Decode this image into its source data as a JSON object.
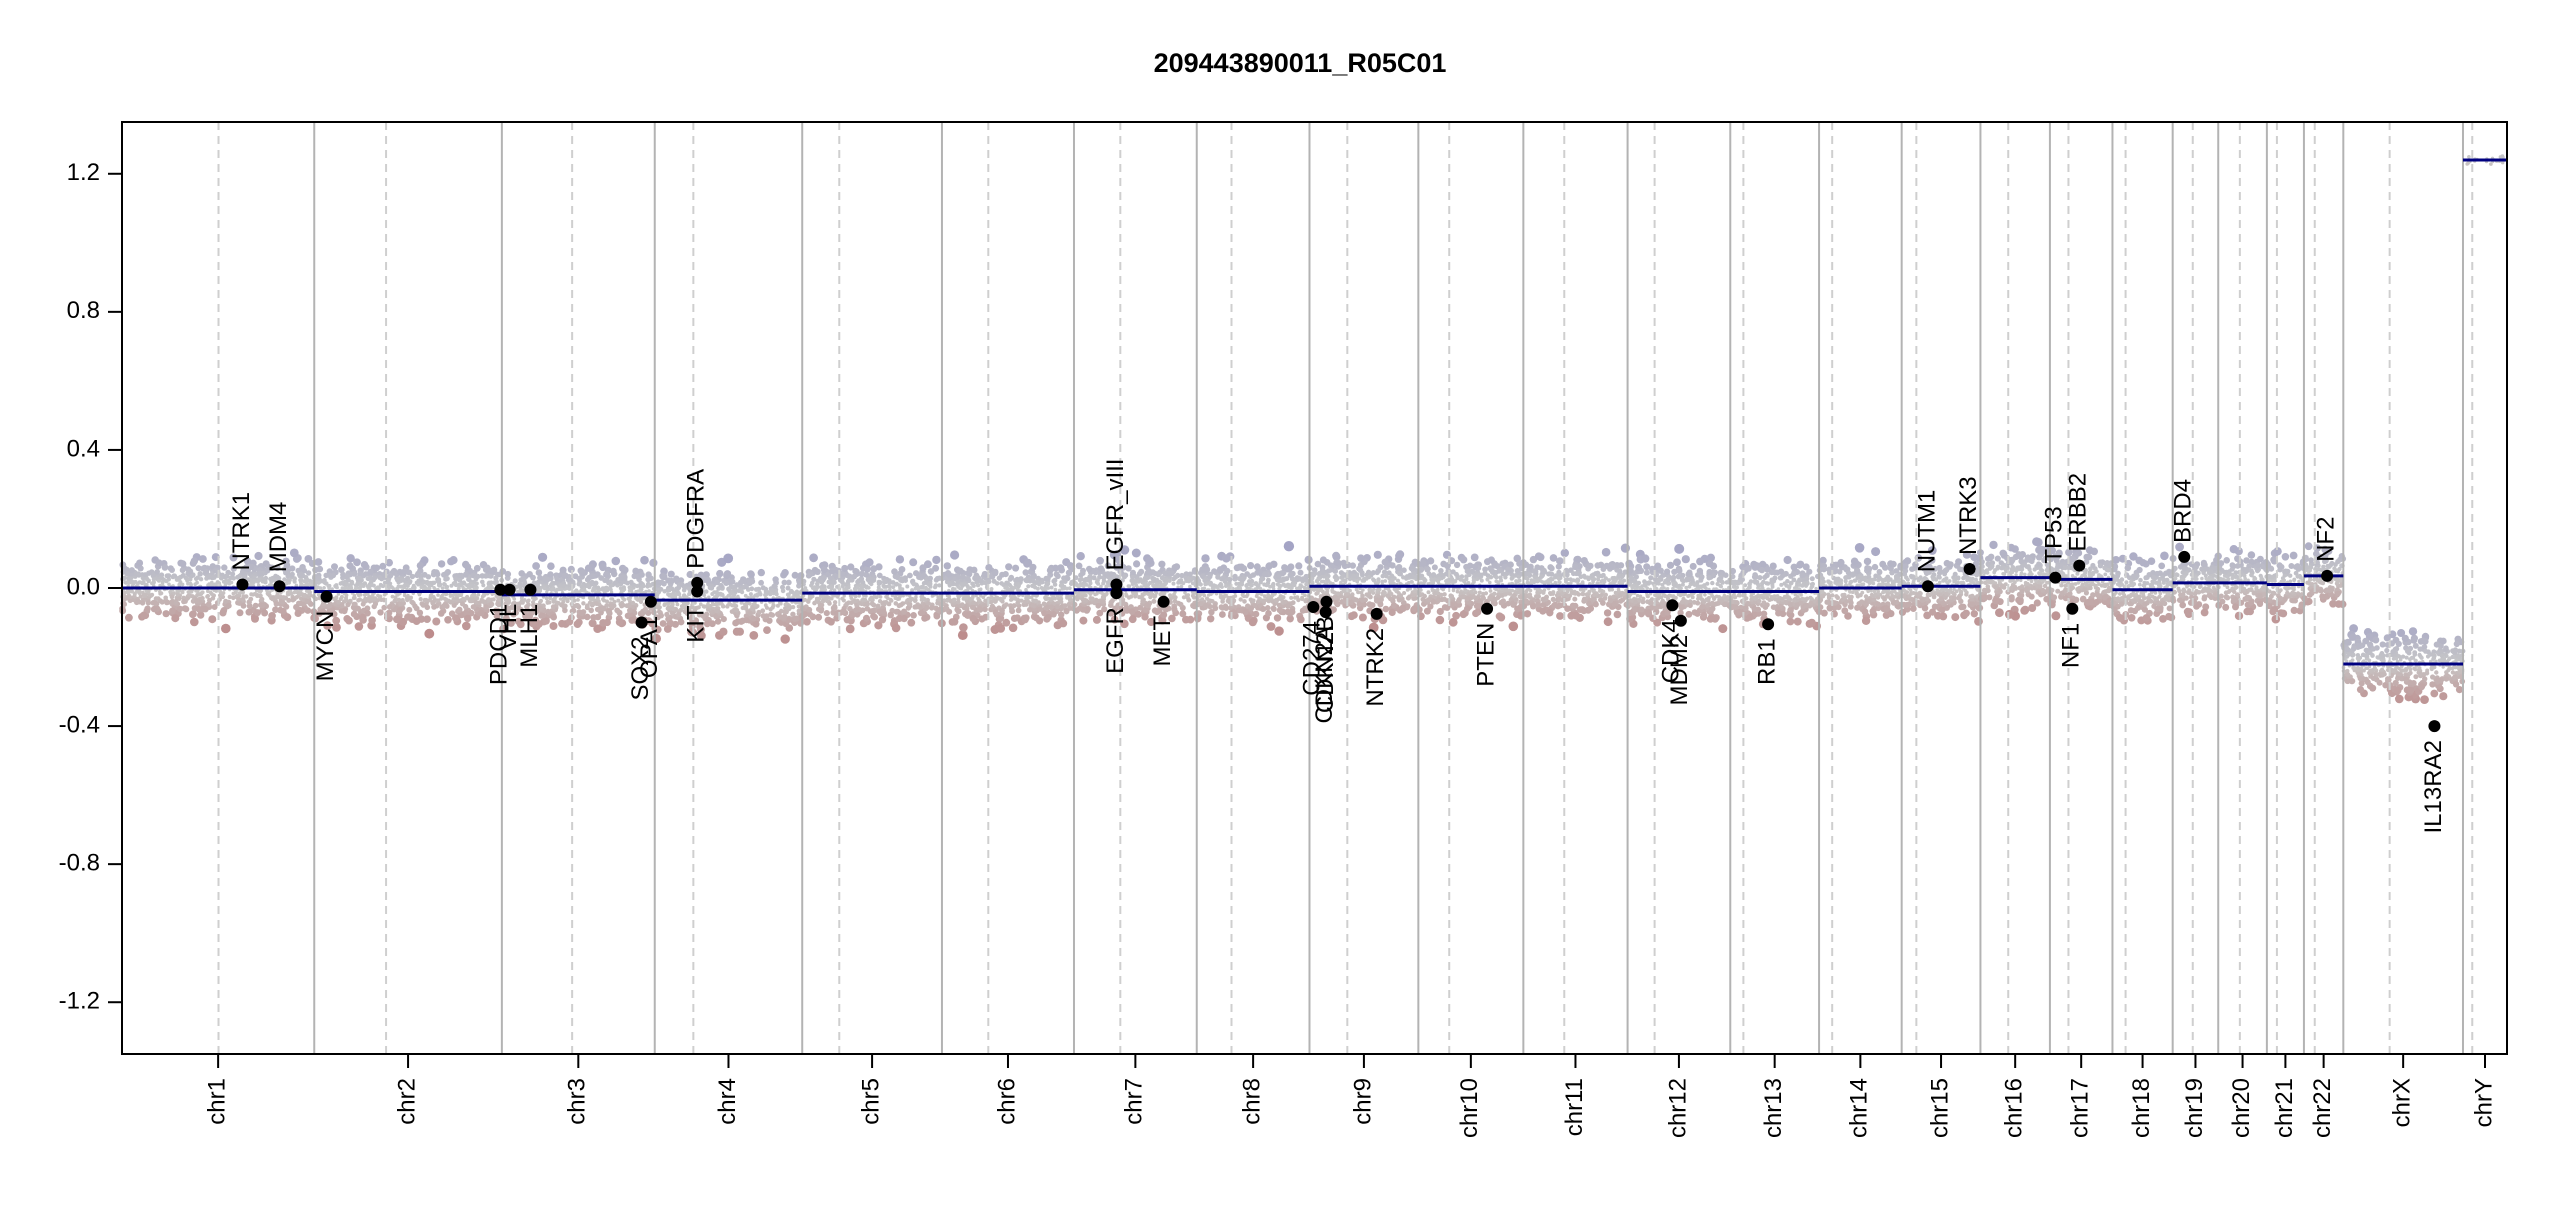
{
  "chart_data": {
    "type": "scatter",
    "title": "209443890011_R05C01",
    "xlabel": "",
    "ylabel": "",
    "ylim": [
      -1.35,
      1.35
    ],
    "y_ticks": [
      -1.2,
      -0.8,
      -0.4,
      0.0,
      0.4,
      0.8,
      1.2
    ],
    "y_tick_labels": [
      "-1.2",
      "-0.8",
      "-0.4",
      "0.0",
      "0.4",
      "0.8",
      "1.2"
    ],
    "colors": {
      "segment": "#000080",
      "gain_points": "#9c9cc4",
      "loss_points": "#b97a7a",
      "neutral_points": "#c8c8c8",
      "gene_points": "#000000",
      "chrom_boundary": "#b3b3b3",
      "centromere": "#cfcfcf"
    },
    "chromosomes": [
      {
        "name": "chr1",
        "size": 249
      },
      {
        "name": "chr2",
        "size": 243
      },
      {
        "name": "chr3",
        "size": 198
      },
      {
        "name": "chr4",
        "size": 191
      },
      {
        "name": "chr5",
        "size": 181
      },
      {
        "name": "chr6",
        "size": 171
      },
      {
        "name": "chr7",
        "size": 159
      },
      {
        "name": "chr8",
        "size": 146
      },
      {
        "name": "chr9",
        "size": 141
      },
      {
        "name": "chr10",
        "size": 136
      },
      {
        "name": "chr11",
        "size": 135
      },
      {
        "name": "chr12",
        "size": 133
      },
      {
        "name": "chr13",
        "size": 115
      },
      {
        "name": "chr14",
        "size": 107
      },
      {
        "name": "chr15",
        "size": 102
      },
      {
        "name": "chr16",
        "size": 90
      },
      {
        "name": "chr17",
        "size": 81
      },
      {
        "name": "chr18",
        "size": 78
      },
      {
        "name": "chr19",
        "size": 59
      },
      {
        "name": "chr20",
        "size": 63
      },
      {
        "name": "chr21",
        "size": 48
      },
      {
        "name": "chr22",
        "size": 51
      },
      {
        "name": "chrX",
        "size": 155
      },
      {
        "name": "chrY",
        "size": 57
      }
    ],
    "centromeres": [
      {
        "chrom": "chr1",
        "pos": 125
      },
      {
        "chrom": "chr2",
        "pos": 93
      },
      {
        "chrom": "chr3",
        "pos": 91
      },
      {
        "chrom": "chr4",
        "pos": 50
      },
      {
        "chrom": "chr5",
        "pos": 48
      },
      {
        "chrom": "chr6",
        "pos": 60
      },
      {
        "chrom": "chr7",
        "pos": 60
      },
      {
        "chrom": "chr8",
        "pos": 45
      },
      {
        "chrom": "chr9",
        "pos": 49
      },
      {
        "chrom": "chr10",
        "pos": 40
      },
      {
        "chrom": "chr11",
        "pos": 53
      },
      {
        "chrom": "chr12",
        "pos": 35
      },
      {
        "chrom": "chr13",
        "pos": 17
      },
      {
        "chrom": "chr14",
        "pos": 17
      },
      {
        "chrom": "chr15",
        "pos": 19
      },
      {
        "chrom": "chr16",
        "pos": 36
      },
      {
        "chrom": "chr17",
        "pos": 24
      },
      {
        "chrom": "chr18",
        "pos": 17
      },
      {
        "chrom": "chr19",
        "pos": 26
      },
      {
        "chrom": "chr20",
        "pos": 28
      },
      {
        "chrom": "chr21",
        "pos": 13
      },
      {
        "chrom": "chr22",
        "pos": 14
      },
      {
        "chrom": "chrX",
        "pos": 60
      },
      {
        "chrom": "chrY",
        "pos": 12
      }
    ],
    "segments": [
      {
        "chrom": "chr1",
        "start": 0,
        "end": 249,
        "value": 0.0
      },
      {
        "chrom": "chr2",
        "start": 0,
        "end": 243,
        "value": -0.01
      },
      {
        "chrom": "chr3",
        "start": 0,
        "end": 198,
        "value": -0.02
      },
      {
        "chrom": "chr4",
        "start": 0,
        "end": 191,
        "value": -0.035
      },
      {
        "chrom": "chr5",
        "start": 0,
        "end": 181,
        "value": -0.015
      },
      {
        "chrom": "chr6",
        "start": 0,
        "end": 171,
        "value": -0.015
      },
      {
        "chrom": "chr7",
        "start": 0,
        "end": 159,
        "value": -0.005
      },
      {
        "chrom": "chr8",
        "start": 0,
        "end": 146,
        "value": -0.01
      },
      {
        "chrom": "chr9",
        "start": 0,
        "end": 141,
        "value": 0.005
      },
      {
        "chrom": "chr10",
        "start": 0,
        "end": 136,
        "value": 0.005
      },
      {
        "chrom": "chr11",
        "start": 0,
        "end": 135,
        "value": 0.005
      },
      {
        "chrom": "chr12",
        "start": 0,
        "end": 133,
        "value": -0.01
      },
      {
        "chrom": "chr13",
        "start": 0,
        "end": 115,
        "value": -0.01
      },
      {
        "chrom": "chr14",
        "start": 0,
        "end": 107,
        "value": 0.0
      },
      {
        "chrom": "chr15",
        "start": 0,
        "end": 102,
        "value": 0.005
      },
      {
        "chrom": "chr16",
        "start": 0,
        "end": 90,
        "value": 0.03
      },
      {
        "chrom": "chr17",
        "start": 0,
        "end": 81,
        "value": 0.025
      },
      {
        "chrom": "chr18",
        "start": 0,
        "end": 78,
        "value": -0.005
      },
      {
        "chrom": "chr19",
        "start": 0,
        "end": 59,
        "value": 0.015
      },
      {
        "chrom": "chr20",
        "start": 0,
        "end": 63,
        "value": 0.015
      },
      {
        "chrom": "chr21",
        "start": 0,
        "end": 48,
        "value": 0.01
      },
      {
        "chrom": "chr22",
        "start": 0,
        "end": 51,
        "value": 0.035
      },
      {
        "chrom": "chrX",
        "start": 0,
        "end": 155,
        "value": -0.22
      },
      {
        "chrom": "chrY",
        "start": 0,
        "end": 57,
        "value": 1.24
      }
    ],
    "genes": [
      {
        "name": "NTRK1",
        "chrom": "chr1",
        "pos": 156,
        "value": 0.01,
        "label_side": "above"
      },
      {
        "name": "MDM4",
        "chrom": "chr1",
        "pos": 204,
        "value": 0.005,
        "label_side": "above"
      },
      {
        "name": "MYCN",
        "chrom": "chr2",
        "pos": 16,
        "value": -0.025,
        "label_side": "below"
      },
      {
        "name": "PDGFRA",
        "chrom": "chr4",
        "pos": 55,
        "value": 0.015,
        "label_side": "above"
      },
      {
        "name": "KIT",
        "chrom": "chr4",
        "pos": 55,
        "value": -0.01,
        "label_side": "below"
      },
      {
        "name": "PDCD1",
        "chrom": "chr2",
        "pos": 241,
        "value": -0.005,
        "label_side": "below"
      },
      {
        "name": "VHL",
        "chrom": "chr3",
        "pos": 10,
        "value": -0.005,
        "label_side": "below"
      },
      {
        "name": "MLH1",
        "chrom": "chr3",
        "pos": 37,
        "value": -0.005,
        "label_side": "below"
      },
      {
        "name": "SOX2",
        "chrom": "chr3",
        "pos": 181,
        "value": -0.1,
        "label_side": "below"
      },
      {
        "name": "OPA1",
        "chrom": "chr3",
        "pos": 193,
        "value": -0.04,
        "label_side": "below"
      },
      {
        "name": "EGFR_vIII",
        "chrom": "chr7",
        "pos": 55,
        "value": 0.01,
        "label_side": "above"
      },
      {
        "name": "EGFR",
        "chrom": "chr7",
        "pos": 55,
        "value": -0.015,
        "label_side": "below"
      },
      {
        "name": "MET",
        "chrom": "chr7",
        "pos": 116,
        "value": -0.04,
        "label_side": "below"
      },
      {
        "name": "CD274",
        "chrom": "chr9",
        "pos": 5,
        "value": -0.055,
        "label_side": "below"
      },
      {
        "name": "CDKN2A",
        "chrom": "chr9",
        "pos": 21,
        "value": -0.07,
        "label_side": "below"
      },
      {
        "name": "CDKN2B",
        "chrom": "chr9",
        "pos": 22,
        "value": -0.04,
        "label_side": "below"
      },
      {
        "name": "NTRK2",
        "chrom": "chr9",
        "pos": 87,
        "value": -0.075,
        "label_side": "below"
      },
      {
        "name": "PTEN",
        "chrom": "chr10",
        "pos": 89,
        "value": -0.06,
        "label_side": "below"
      },
      {
        "name": "CDK4",
        "chrom": "chr12",
        "pos": 58,
        "value": -0.05,
        "label_side": "below"
      },
      {
        "name": "MDM2",
        "chrom": "chr12",
        "pos": 69,
        "value": -0.095,
        "label_side": "below"
      },
      {
        "name": "RB1",
        "chrom": "chr13",
        "pos": 49,
        "value": -0.105,
        "label_side": "below"
      },
      {
        "name": "NUTM1",
        "chrom": "chr15",
        "pos": 34,
        "value": 0.005,
        "label_side": "above"
      },
      {
        "name": "NTRK3",
        "chrom": "chr15",
        "pos": 88,
        "value": 0.055,
        "label_side": "above"
      },
      {
        "name": "TP53",
        "chrom": "chr17",
        "pos": 7,
        "value": 0.03,
        "label_side": "above"
      },
      {
        "name": "ERBB2",
        "chrom": "chr17",
        "pos": 38,
        "value": 0.065,
        "label_side": "above"
      },
      {
        "name": "NF1",
        "chrom": "chr17",
        "pos": 29,
        "value": -0.06,
        "label_side": "below"
      },
      {
        "name": "BRD4",
        "chrom": "chr19",
        "pos": 15,
        "value": 0.09,
        "label_side": "above"
      },
      {
        "name": "NF2",
        "chrom": "chr22",
        "pos": 30,
        "value": 0.035,
        "label_side": "above"
      },
      {
        "name": "IL13RA2",
        "chrom": "chrX",
        "pos": 118,
        "value": -0.4,
        "label_side": "below"
      }
    ]
  }
}
